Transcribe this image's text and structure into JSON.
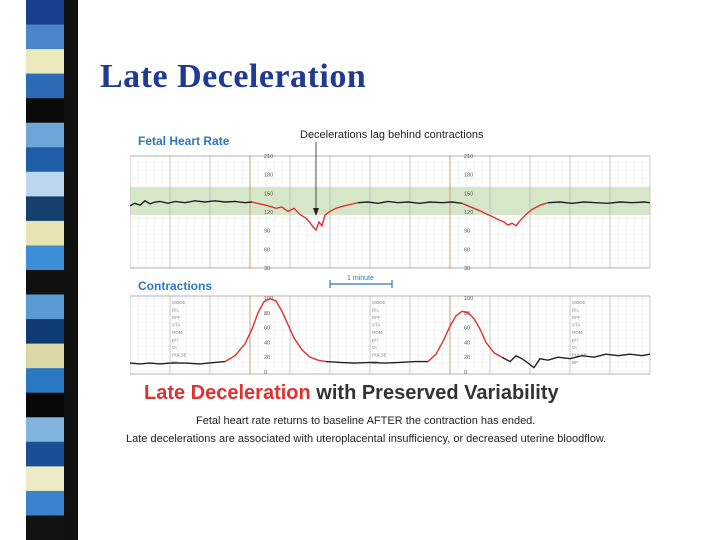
{
  "slide": {
    "title": "Late Deceleration",
    "strip_colors": [
      "#1b3f8f",
      "#4a86c8",
      "#ece9bc",
      "#2c6bb5",
      "#0a0a0a",
      "#6fa6d8",
      "#1e5fa8",
      "#bcd6ee",
      "#14406f",
      "#e7e3b3",
      "#3c8ed6",
      "#101010",
      "#5a9bd5",
      "#0f3a74",
      "#dcd8a6",
      "#2a78c2",
      "#080808",
      "#82b4e0",
      "#1b4f93",
      "#ecebc5",
      "#3a82cc",
      "#121212"
    ]
  },
  "figure": {
    "fhr_title": "Fetal Heart Rate",
    "annotation": "Decelerations lag behind contractions",
    "contractions_title": "Contractions",
    "time_scale_label": "1 minute",
    "fhr_ticks": [
      "210",
      "180",
      "150",
      "120",
      "90",
      "60",
      "30"
    ],
    "uc_ticks": [
      "100",
      "80",
      "60",
      "40",
      "20",
      "0"
    ],
    "monitor_labels": [
      "MODE",
      "DIL",
      "EFF",
      "STA",
      "ROM",
      "pH",
      "O₂",
      "PULSE",
      "BP"
    ],
    "caption_red": "Late Deceleration",
    "caption_black": " with Preserved Variability",
    "caption_line1": "Fetal heart rate returns to baseline AFTER the contraction has ended.",
    "caption_line2": "Late decelerations are associated with uteroplacental insufficiency, or decreased uterine bloodflow.",
    "colors": {
      "normal_trace": "#222222",
      "decel_trace": "#e03030",
      "normal_band": "#cfe3bf",
      "title_blue": "#2a78c2",
      "grid_orange": "#c8a070"
    }
  }
}
